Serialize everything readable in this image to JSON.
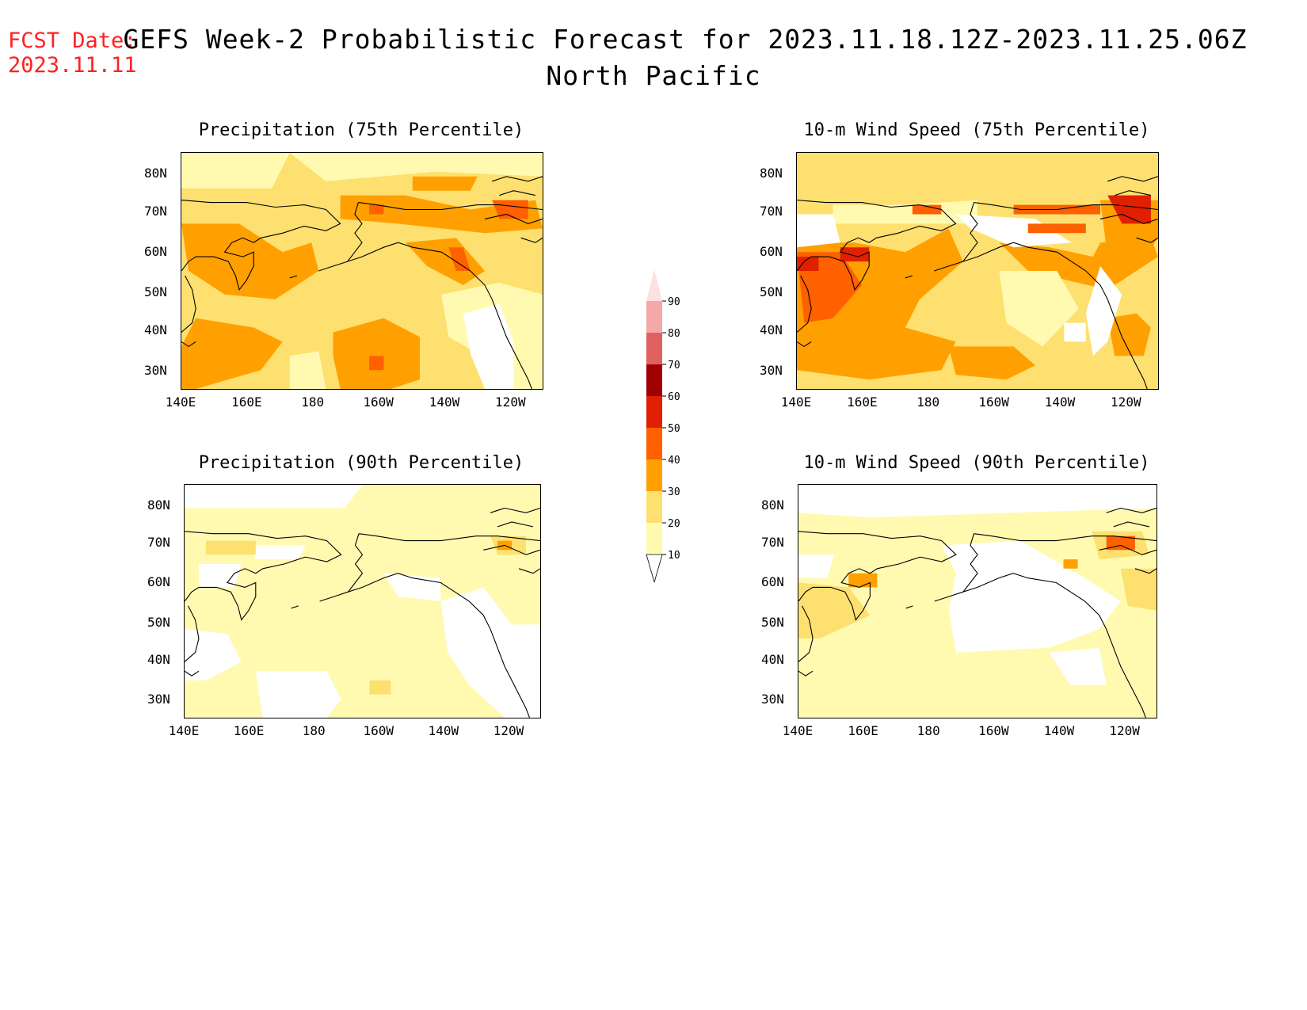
{
  "header": {
    "fcst_label": "FCST Date:",
    "fcst_date": "2023.11.11",
    "title_line1": "GEFS Week-2 Probabilistic Forecast for 2023.11.18.12Z-2023.11.25.06Z",
    "title_line2": "North Pacific"
  },
  "axes": {
    "lon_labels": [
      "140E",
      "160E",
      "180",
      "160W",
      "140W",
      "120W"
    ],
    "lat_labels": [
      "80N",
      "70N",
      "60N",
      "50N",
      "40N",
      "30N"
    ]
  },
  "panels": [
    {
      "title": "Precipitation (75th Percentile)",
      "intensity": "medium"
    },
    {
      "title": "10-m Wind Speed (75th Percentile)",
      "intensity": "high"
    },
    {
      "title": "Precipitation (90th Percentile)",
      "intensity": "low"
    },
    {
      "title": "10-m Wind Speed (90th Percentile)",
      "intensity": "low"
    }
  ],
  "colorbar": {
    "levels": [
      "90",
      "80",
      "70",
      "60",
      "50",
      "40",
      "30",
      "20",
      "10"
    ],
    "colors": [
      "#fde0e0",
      "#f4a8a8",
      "#e06060",
      "#a00000",
      "#e02000",
      "#ff6000",
      "#ffa000",
      "#fde070",
      "#fffab0"
    ]
  },
  "colors": {
    "fcst_red": "#ff2020",
    "land_white": "#ffffff"
  }
}
